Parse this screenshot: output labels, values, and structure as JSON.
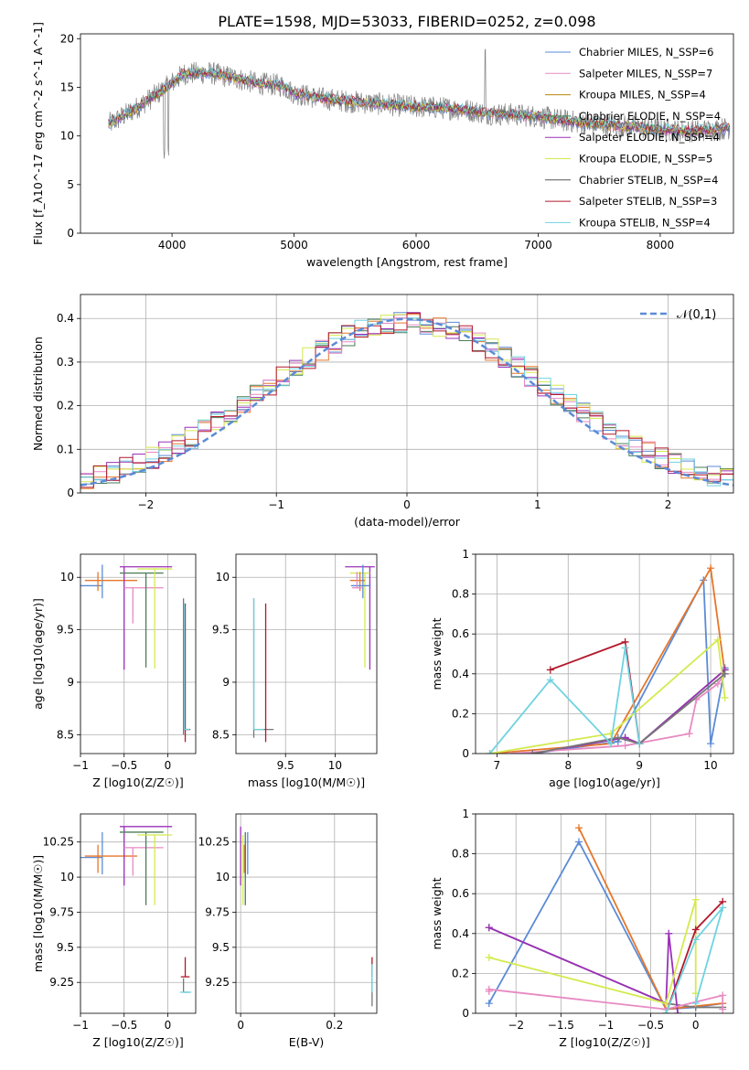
{
  "figure": {
    "title": "PLATE=1598, MJD=53033, FIBERID=0252, z=0.098"
  },
  "chart_data": [
    {
      "id": "spectrum",
      "type": "line",
      "xlabel": "wavelength [Angstrom, rest frame]",
      "ylabel": "Flux [f_λ10^-17 erg cm^-2 s^-1 A^-1]",
      "xlim": [
        3250,
        8600
      ],
      "ylim": [
        0,
        20.5
      ],
      "xticks": [
        4000,
        5000,
        6000,
        7000,
        8000
      ],
      "yticks": [
        0,
        5,
        10,
        15,
        20
      ],
      "legend": "top-right",
      "grid": false,
      "continuum": {
        "x": [
          3500,
          3700,
          3900,
          4100,
          4300,
          4500,
          4700,
          4900,
          5000,
          5200,
          5400,
          5600,
          5800,
          6000,
          6200,
          6400,
          6600,
          6800,
          7000,
          7200,
          7400,
          7600,
          7800,
          8000,
          8200,
          8400,
          8550
        ],
        "y": [
          11.3,
          12.8,
          14.5,
          16.4,
          16.5,
          16.0,
          15.4,
          15.2,
          14.4,
          13.9,
          13.6,
          13.4,
          13.2,
          13.0,
          12.9,
          12.7,
          12.3,
          12.2,
          12.0,
          11.6,
          11.3,
          11.1,
          10.9,
          10.7,
          10.5,
          10.6,
          10.8
        ]
      },
      "series": [
        {
          "name": "Chabrier MILES, N_SSP=6",
          "color": "#5b8bd6"
        },
        {
          "name": "Salpeter MILES, N_SSP=7",
          "color": "#e78ac3"
        },
        {
          "name": "Kroupa MILES, N_SSP=4",
          "color": "#b8860b"
        },
        {
          "name": "Chabrier ELODIE, N_SSP=4",
          "color": "#4a7c59"
        },
        {
          "name": "Salpeter ELODIE, N_SSP=4",
          "color": "#9b30b8"
        },
        {
          "name": "Kroupa ELODIE, N_SSP=5",
          "color": "#d4ea4e"
        },
        {
          "name": "Chabrier STELIB, N_SSP=4",
          "color": "#555555"
        },
        {
          "name": "Salpeter STELIB, N_SSP=3",
          "color": "#b2182b"
        },
        {
          "name": "Kroupa STELIB, N_SSP=4",
          "color": "#6fd3e0"
        }
      ]
    },
    {
      "id": "residuals",
      "type": "line",
      "xlabel": "(data-model)/error",
      "ylabel": "Normed distribution",
      "xlim": [
        -2.5,
        2.5
      ],
      "ylim": [
        0,
        0.455
      ],
      "xticks": [
        -2,
        -1,
        0,
        1,
        2
      ],
      "yticks": [
        0.0,
        0.1,
        0.2,
        0.3,
        0.4
      ],
      "grid": true,
      "legend": "top-right",
      "reference": {
        "name": "𝒩(0,1)",
        "color": "#5b8bd6"
      },
      "hist_colors": [
        "#5b8bd6",
        "#e6762a",
        "#4a7c59",
        "#9b30b8",
        "#e78ac3",
        "#d4ea4e",
        "#6fd3e0",
        "#b2182b"
      ]
    },
    {
      "id": "age-vs-Z",
      "type": "scatter",
      "xlabel": "Z [log10(Z/Z☉)]",
      "ylabel": "age  [log10(age/yr)]",
      "xlim": [
        -1.0,
        0.32
      ],
      "ylim": [
        8.32,
        10.22
      ],
      "xticks": [
        -1.0,
        -0.5,
        0.0
      ],
      "yticks": [
        8.5,
        9.0,
        9.5,
        10.0
      ],
      "grid": true,
      "points": [
        {
          "x": -0.75,
          "y": 9.92,
          "xerr": [
            0.25,
            0.0
          ],
          "yerr": [
            0.12,
            0.2
          ],
          "color": "#5b8bd6"
        },
        {
          "x": -0.8,
          "y": 9.97,
          "xerr": [
            0.15,
            0.45
          ],
          "yerr": [
            0.1,
            0.08
          ],
          "color": "#e6762a"
        },
        {
          "x": -0.5,
          "y": 10.1,
          "xerr": [
            0.05,
            0.55
          ],
          "yerr": [
            0.98,
            0.0
          ],
          "color": "#9b30b8"
        },
        {
          "x": -0.4,
          "y": 9.9,
          "xerr": [
            0.1,
            0.35
          ],
          "yerr": [
            0.34,
            0.0
          ],
          "color": "#e78ac3"
        },
        {
          "x": -0.25,
          "y": 10.04,
          "xerr": [
            0.3,
            0.2
          ],
          "yerr": [
            0.9,
            0.0
          ],
          "color": "#4a7c59"
        },
        {
          "x": -0.15,
          "y": 10.08,
          "xerr": [
            0.2,
            0.2
          ],
          "yerr": [
            0.95,
            0.0
          ],
          "color": "#d4ea4e"
        },
        {
          "x": 0.18,
          "y": 8.55,
          "xerr": [
            0.0,
            0.08
          ],
          "yerr": [
            0.05,
            1.25
          ],
          "color": "#777777"
        },
        {
          "x": 0.2,
          "y": 8.55,
          "xerr": [
            0.0,
            0.05
          ],
          "yerr": [
            0.12,
            1.2
          ],
          "color": "#b2182b"
        },
        {
          "x": 0.19,
          "y": 8.55,
          "xerr": [
            0.0,
            0.06
          ],
          "yerr": [
            0.0,
            1.2
          ],
          "color": "#6fd3e0"
        }
      ]
    },
    {
      "id": "age-vs-mass",
      "type": "scatter",
      "xlabel": "mass [log10(M/M☉)]",
      "ylabel": "",
      "xlim": [
        9.0,
        10.42
      ],
      "ylim": [
        8.32,
        10.22
      ],
      "xticks": [
        9.5,
        10.0
      ],
      "yticks": [
        8.5,
        9.0,
        9.5,
        10.0
      ],
      "grid": true,
      "points": [
        {
          "x": 9.18,
          "y": 8.55,
          "xerr": [
            0.0,
            0.2
          ],
          "yerr": [
            0.08,
            1.25
          ],
          "color": "#777777"
        },
        {
          "x": 9.18,
          "y": 8.55,
          "xerr": [
            0.0,
            0.1
          ],
          "yerr": [
            0.0,
            1.25
          ],
          "color": "#6fd3e0"
        },
        {
          "x": 9.3,
          "y": 8.55,
          "xerr": [
            0.0,
            0.0
          ],
          "yerr": [
            0.12,
            1.2
          ],
          "color": "#b2182b"
        },
        {
          "x": 10.35,
          "y": 10.1,
          "xerr": [
            0.25,
            0.05
          ],
          "yerr": [
            0.98,
            0.0
          ],
          "color": "#9b30b8"
        },
        {
          "x": 10.3,
          "y": 10.04,
          "xerr": [
            0.15,
            0.05
          ],
          "yerr": [
            0.9,
            0.0
          ],
          "color": "#d4ea4e"
        },
        {
          "x": 10.25,
          "y": 9.97,
          "xerr": [
            0.1,
            0.05
          ],
          "yerr": [
            0.1,
            0.08
          ],
          "color": "#e6762a"
        },
        {
          "x": 10.28,
          "y": 9.92,
          "xerr": [
            0.12,
            0.08
          ],
          "yerr": [
            0.12,
            0.2
          ],
          "color": "#5b8bd6"
        },
        {
          "x": 10.22,
          "y": 9.9,
          "xerr": [
            0.05,
            0.05
          ],
          "yerr": [
            0.0,
            0.15
          ],
          "color": "#e78ac3"
        }
      ]
    },
    {
      "id": "weight-vs-age",
      "type": "line",
      "xlabel": "age  [log10(age/yr)]",
      "ylabel": "mass weight",
      "xlim": [
        6.7,
        10.32
      ],
      "ylim": [
        0,
        1.0
      ],
      "xticks": [
        7,
        8,
        9,
        10
      ],
      "yticks": [
        0.0,
        0.2,
        0.4,
        0.6,
        0.8,
        1.0
      ],
      "grid": true,
      "series": [
        {
          "color": "#5b8bd6",
          "x": [
            7.5,
            8.7,
            9.9,
            10.0,
            10.2
          ],
          "y": [
            0.0,
            0.06,
            0.87,
            0.05,
            0.43
          ]
        },
        {
          "color": "#e6762a",
          "x": [
            6.9,
            8.6,
            10.0,
            10.2
          ],
          "y": [
            0.0,
            0.05,
            0.93,
            0.4
          ]
        },
        {
          "color": "#4a7c59",
          "x": [
            7.5,
            8.8,
            9.0,
            10.2
          ],
          "y": [
            0.0,
            0.08,
            0.05,
            0.42
          ]
        },
        {
          "color": "#9b30b8",
          "x": [
            7.5,
            8.8,
            9.0,
            10.2
          ],
          "y": [
            0.0,
            0.08,
            0.05,
            0.42
          ]
        },
        {
          "color": "#e78ac3",
          "x": [
            7.2,
            8.8,
            9.7,
            9.8,
            10.1,
            10.2
          ],
          "y": [
            0.0,
            0.04,
            0.1,
            0.27,
            0.35,
            0.4
          ]
        },
        {
          "color": "#d4ea4e",
          "x": [
            6.9,
            8.6,
            10.1,
            10.2
          ],
          "y": [
            0.0,
            0.1,
            0.57,
            0.28
          ]
        },
        {
          "color": "#777777",
          "x": [
            7.5,
            8.7,
            9.0,
            10.2
          ],
          "y": [
            0.0,
            0.08,
            0.05,
            0.4
          ]
        },
        {
          "color": "#b2182b",
          "x": [
            7.75,
            8.8,
            9.0
          ],
          "y": [
            0.42,
            0.56,
            0.05
          ]
        },
        {
          "color": "#6fd3e0",
          "x": [
            6.9,
            7.75,
            8.6,
            8.8,
            9.0
          ],
          "y": [
            0.0,
            0.37,
            0.05,
            0.53,
            0.05
          ]
        }
      ]
    },
    {
      "id": "mass-vs-Z",
      "type": "scatter",
      "xlabel": "Z [log10(Z/Z☉)]",
      "ylabel": "mass [log10(M/M☉)]",
      "xlim": [
        -1.0,
        0.32
      ],
      "ylim": [
        9.03,
        10.45
      ],
      "xticks": [
        -1.0,
        -0.5,
        0.0
      ],
      "yticks": [
        9.25,
        9.5,
        9.75,
        10.0,
        10.25
      ],
      "grid": true,
      "points": [
        {
          "x": -0.75,
          "y": 10.14,
          "xerr": [
            0.25,
            0.0
          ],
          "yerr": [
            0.12,
            0.18
          ],
          "color": "#5b8bd6"
        },
        {
          "x": -0.8,
          "y": 10.15,
          "xerr": [
            0.15,
            0.45
          ],
          "yerr": [
            0.12,
            0.08
          ],
          "color": "#e6762a"
        },
        {
          "x": -0.5,
          "y": 10.36,
          "xerr": [
            0.05,
            0.55
          ],
          "yerr": [
            0.42,
            0.0
          ],
          "color": "#9b30b8"
        },
        {
          "x": -0.4,
          "y": 10.21,
          "xerr": [
            0.1,
            0.35
          ],
          "yerr": [
            0.2,
            0.0
          ],
          "color": "#e78ac3"
        },
        {
          "x": -0.25,
          "y": 10.32,
          "xerr": [
            0.3,
            0.2
          ],
          "yerr": [
            0.52,
            0.0
          ],
          "color": "#4a7c59"
        },
        {
          "x": -0.15,
          "y": 10.3,
          "xerr": [
            0.2,
            0.2
          ],
          "yerr": [
            0.5,
            0.0
          ],
          "color": "#d4ea4e"
        },
        {
          "x": 0.18,
          "y": 9.18,
          "xerr": [
            0.0,
            0.06
          ],
          "yerr": [
            0.0,
            0.1
          ],
          "color": "#777777"
        },
        {
          "x": 0.2,
          "y": 9.29,
          "xerr": [
            0.05,
            0.05
          ],
          "yerr": [
            0.0,
            0.14
          ],
          "color": "#b2182b"
        },
        {
          "x": 0.19,
          "y": 9.18,
          "xerr": [
            0.05,
            0.08
          ],
          "yerr": [
            0.0,
            0.0
          ],
          "color": "#6fd3e0"
        }
      ]
    },
    {
      "id": "mass-vs-EBV",
      "type": "scatter",
      "xlabel": "E(B-V)",
      "ylabel": "",
      "xlim": [
        -0.01,
        0.29
      ],
      "ylim": [
        9.03,
        10.45
      ],
      "xticks": [
        0.0,
        0.2
      ],
      "yticks": [
        9.25,
        9.5,
        9.75,
        10.0,
        10.25
      ],
      "grid": true,
      "points": [
        {
          "x": 0.0,
          "y": 10.36,
          "xerr": [
            0.0,
            0.0
          ],
          "yerr": [
            0.42,
            0.0
          ],
          "color": "#9b30b8"
        },
        {
          "x": 0.005,
          "y": 10.3,
          "xerr": [
            0.0,
            0.0
          ],
          "yerr": [
            0.5,
            0.0
          ],
          "color": "#d4ea4e"
        },
        {
          "x": 0.01,
          "y": 10.21,
          "xerr": [
            0.0,
            0.0
          ],
          "yerr": [
            0.2,
            0.05
          ],
          "color": "#e78ac3"
        },
        {
          "x": 0.015,
          "y": 10.14,
          "xerr": [
            0.0,
            0.0
          ],
          "yerr": [
            0.12,
            0.18
          ],
          "color": "#5b8bd6"
        },
        {
          "x": 0.008,
          "y": 10.15,
          "xerr": [
            0.0,
            0.0
          ],
          "yerr": [
            0.12,
            0.08
          ],
          "color": "#e6762a"
        },
        {
          "x": 0.01,
          "y": 10.32,
          "xerr": [
            0.0,
            0.0
          ],
          "yerr": [
            0.52,
            0.0
          ],
          "color": "#4a7c59"
        },
        {
          "x": 0.28,
          "y": 9.18,
          "xerr": [
            0.0,
            0.0
          ],
          "yerr": [
            0.1,
            0.1
          ],
          "color": "#777777"
        },
        {
          "x": 0.28,
          "y": 9.29,
          "xerr": [
            0.0,
            0.0
          ],
          "yerr": [
            0.0,
            0.14
          ],
          "color": "#b2182b"
        },
        {
          "x": 0.28,
          "y": 9.18,
          "xerr": [
            0.0,
            0.0
          ],
          "yerr": [
            0.0,
            0.2
          ],
          "color": "#6fd3e0"
        }
      ]
    },
    {
      "id": "weight-vs-Z",
      "type": "line",
      "xlabel": "Z [log10(Z/Z☉)]",
      "ylabel": "mass weight",
      "xlim": [
        -2.45,
        0.42
      ],
      "ylim": [
        0,
        1.0
      ],
      "xticks": [
        -2.0,
        -1.5,
        -1.0,
        -0.5,
        0.0
      ],
      "yticks": [
        0.0,
        0.2,
        0.4,
        0.6,
        0.8,
        1.0
      ],
      "grid": true,
      "series": [
        {
          "color": "#5b8bd6",
          "x": [
            -2.3,
            -1.3,
            -0.33,
            0.0,
            0.3
          ],
          "y": [
            0.05,
            0.86,
            0.02,
            0.03,
            0.05
          ]
        },
        {
          "color": "#e6762a",
          "x": [
            -1.3,
            -0.33,
            0.3
          ],
          "y": [
            0.93,
            0.02,
            0.05
          ]
        },
        {
          "color": "#777777",
          "x": [
            -2.3,
            -0.33,
            0.0,
            0.3
          ],
          "y": [
            0.43,
            0.05,
            0.03,
            0.03
          ]
        },
        {
          "color": "#9b30b8",
          "x": [
            -2.3,
            -0.33,
            -0.3,
            -0.2
          ],
          "y": [
            0.43,
            0.05,
            0.4,
            0.0
          ]
        },
        {
          "color": "#e78ac3",
          "x": [
            -2.3,
            -2.3,
            -0.33,
            0.3,
            0.3
          ],
          "y": [
            0.11,
            0.12,
            0.02,
            0.09,
            0.02
          ]
        },
        {
          "color": "#d4ea4e",
          "x": [
            -2.3,
            -0.33,
            0.0,
            0.0
          ],
          "y": [
            0.28,
            0.05,
            0.57,
            0.1
          ]
        },
        {
          "color": "#b2182b",
          "x": [
            -0.33,
            0.0,
            0.3
          ],
          "y": [
            0.0,
            0.42,
            0.56
          ]
        },
        {
          "color": "#6fd3e0",
          "x": [
            -0.33,
            0.0,
            0.3,
            0.0
          ],
          "y": [
            0.0,
            0.37,
            0.53,
            0.05
          ]
        }
      ]
    }
  ]
}
